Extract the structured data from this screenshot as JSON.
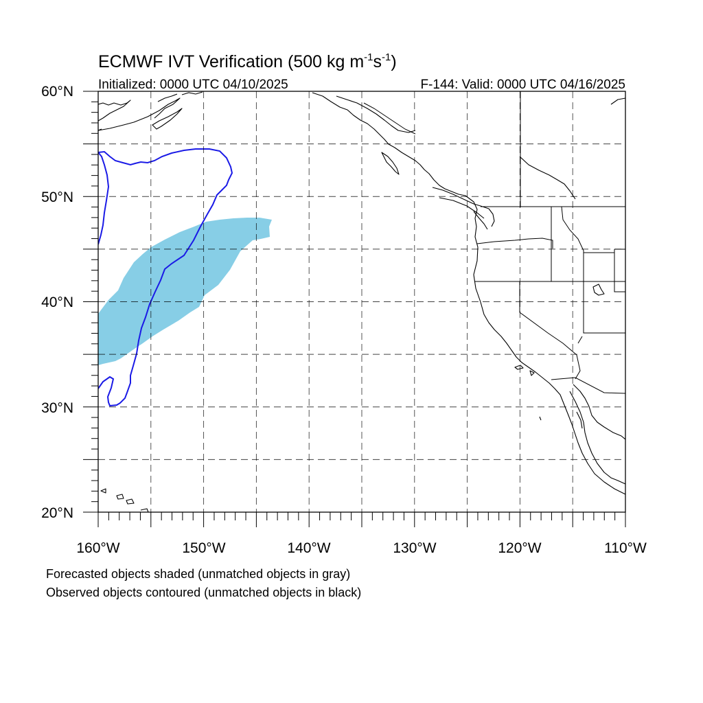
{
  "title": {
    "main_prefix": "ECMWF IVT Verification (500 kg m",
    "sup1": "-1",
    "mid": "s",
    "sup2": "-1",
    "suffix": ")"
  },
  "initialized": "Initialized: 0000 UTC 04/10/2025",
  "valid": "F-144: Valid: 0000 UTC 04/16/2025",
  "lat_labels": [
    "60°N",
    "50°N",
    "40°N",
    "30°N",
    "20°N"
  ],
  "lon_labels": [
    "160°W",
    "150°W",
    "140°W",
    "130°W",
    "120°W",
    "110°W"
  ],
  "legend": {
    "line1": "Forecasted objects shaded (unmatched objects in gray)",
    "line2": "Observed objects contoured (unmatched objects in black)"
  },
  "map": {
    "lon_range": [
      -160,
      -110
    ],
    "lat_range": [
      20,
      60
    ],
    "grid_spacing_deg": 5,
    "forecast_object_color": "#87CEE6",
    "observed_contour_color": "#1A1AE6"
  }
}
